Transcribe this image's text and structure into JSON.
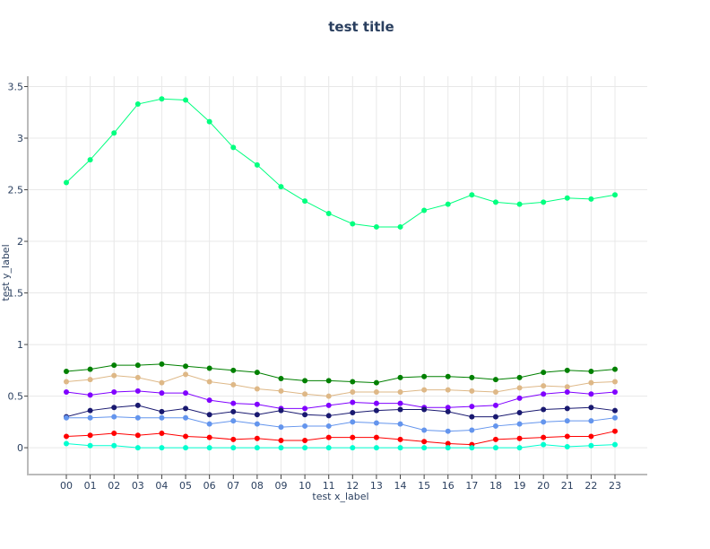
{
  "chart_data": {
    "type": "line",
    "title": "test title",
    "xlabel": "test x_label",
    "ylabel": "test y_label",
    "categories": [
      "00",
      "01",
      "02",
      "03",
      "04",
      "05",
      "06",
      "07",
      "08",
      "09",
      "10",
      "11",
      "12",
      "13",
      "14",
      "15",
      "16",
      "17",
      "18",
      "19",
      "20",
      "21",
      "22",
      "23"
    ],
    "ylim": [
      -0.26,
      3.6
    ],
    "yticks": [
      0,
      0.5,
      1,
      1.5,
      2,
      2.5,
      3,
      3.5
    ],
    "ytick_labels": [
      "0",
      "0.5",
      "1",
      "1.5",
      "2",
      "2.5",
      "3",
      "3.5"
    ],
    "grid": true,
    "legend": "none",
    "series": [
      {
        "name": "springgreen",
        "color": "#00ff7f",
        "values": [
          2.57,
          2.79,
          3.05,
          3.33,
          3.38,
          3.37,
          3.16,
          2.91,
          2.74,
          2.53,
          2.39,
          2.27,
          2.17,
          2.14,
          2.14,
          2.3,
          2.36,
          2.45,
          2.38,
          2.36,
          2.38,
          2.42,
          2.41,
          2.45
        ]
      },
      {
        "name": "green",
        "color": "#008000",
        "values": [
          0.74,
          0.76,
          0.8,
          0.8,
          0.81,
          0.79,
          0.77,
          0.75,
          0.73,
          0.67,
          0.65,
          0.65,
          0.64,
          0.63,
          0.68,
          0.69,
          0.69,
          0.68,
          0.66,
          0.68,
          0.73,
          0.75,
          0.74,
          0.76
        ]
      },
      {
        "name": "burlywood",
        "color": "#deb887",
        "values": [
          0.64,
          0.66,
          0.7,
          0.68,
          0.63,
          0.71,
          0.64,
          0.61,
          0.57,
          0.55,
          0.52,
          0.5,
          0.54,
          0.54,
          0.54,
          0.56,
          0.56,
          0.55,
          0.54,
          0.58,
          0.6,
          0.59,
          0.63,
          0.64
        ]
      },
      {
        "name": "purple",
        "color": "#8000ff",
        "values": [
          0.54,
          0.51,
          0.54,
          0.55,
          0.53,
          0.53,
          0.46,
          0.43,
          0.42,
          0.38,
          0.38,
          0.41,
          0.44,
          0.43,
          0.43,
          0.39,
          0.39,
          0.4,
          0.41,
          0.48,
          0.52,
          0.54,
          0.52,
          0.54
        ]
      },
      {
        "name": "navy",
        "color": "#191970",
        "values": [
          0.3,
          0.36,
          0.39,
          0.41,
          0.35,
          0.38,
          0.32,
          0.35,
          0.32,
          0.36,
          0.32,
          0.31,
          0.34,
          0.36,
          0.37,
          0.37,
          0.35,
          0.3,
          0.3,
          0.34,
          0.37,
          0.38,
          0.39,
          0.36
        ]
      },
      {
        "name": "cornflowerblue",
        "color": "#6495ed",
        "values": [
          0.29,
          0.29,
          0.3,
          0.29,
          0.29,
          0.29,
          0.23,
          0.26,
          0.23,
          0.2,
          0.21,
          0.21,
          0.25,
          0.24,
          0.23,
          0.17,
          0.16,
          0.17,
          0.21,
          0.23,
          0.25,
          0.26,
          0.26,
          0.29
        ]
      },
      {
        "name": "red",
        "color": "#ff0000",
        "values": [
          0.11,
          0.12,
          0.14,
          0.12,
          0.14,
          0.11,
          0.1,
          0.08,
          0.09,
          0.07,
          0.07,
          0.1,
          0.1,
          0.1,
          0.08,
          0.06,
          0.04,
          0.03,
          0.08,
          0.09,
          0.1,
          0.11,
          0.11,
          0.16
        ]
      },
      {
        "name": "cyan",
        "color": "#00ffd0",
        "values": [
          0.04,
          0.02,
          0.02,
          0.0,
          0.0,
          0.0,
          0.0,
          0.0,
          0.0,
          0.0,
          0.0,
          0.0,
          0.0,
          0.0,
          0.0,
          0.0,
          0.0,
          0.0,
          0.0,
          0.0,
          0.03,
          0.01,
          0.02,
          0.03
        ]
      }
    ]
  }
}
